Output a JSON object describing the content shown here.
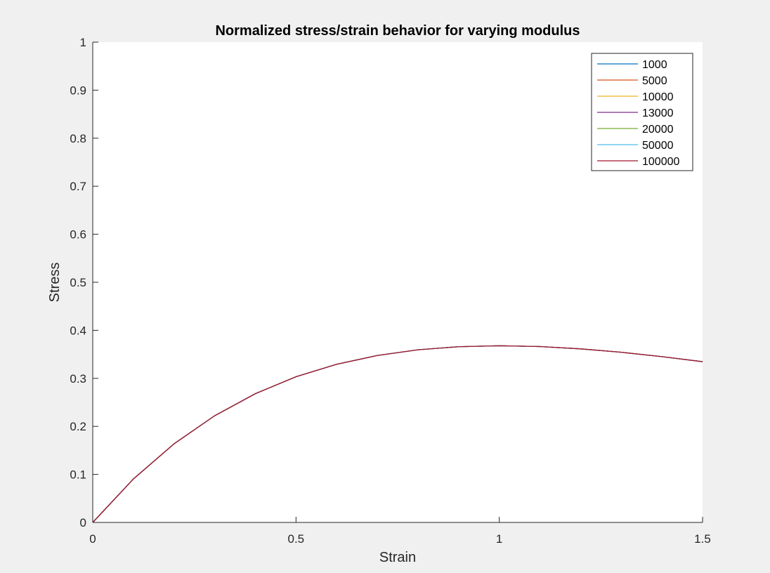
{
  "chart_data": {
    "type": "line",
    "title": "Normalized stress/strain behavior for varying modulus",
    "xlabel": "Strain",
    "ylabel": "Stress",
    "xlim": [
      0,
      1.5
    ],
    "ylim": [
      0,
      1
    ],
    "xticks": [
      "0",
      "0.5",
      "1",
      "1.5"
    ],
    "yticks": [
      "0",
      "0.1",
      "0.2",
      "0.3",
      "0.4",
      "0.5",
      "0.6",
      "0.7",
      "0.8",
      "0.9",
      "1"
    ],
    "grid": false,
    "legend_position": "top-right",
    "x": [
      0,
      0.1,
      0.2,
      0.3,
      0.4,
      0.5,
      0.6,
      0.7,
      0.8,
      0.9,
      1.0,
      1.1,
      1.2,
      1.3,
      1.4,
      1.5
    ],
    "series": [
      {
        "name": "1000",
        "color": "#0072BD",
        "values": [
          0,
          0.0905,
          0.1637,
          0.2222,
          0.2681,
          0.3033,
          0.3293,
          0.3476,
          0.3595,
          0.3659,
          0.3679,
          0.3662,
          0.3614,
          0.3543,
          0.3452,
          0.3347
        ]
      },
      {
        "name": "5000",
        "color": "#D95319",
        "values": [
          0,
          0.0905,
          0.1637,
          0.2222,
          0.2681,
          0.3033,
          0.3293,
          0.3476,
          0.3595,
          0.3659,
          0.3679,
          0.3662,
          0.3614,
          0.3543,
          0.3452,
          0.3347
        ]
      },
      {
        "name": "10000",
        "color": "#EDB120",
        "values": [
          0,
          0.0905,
          0.1637,
          0.2222,
          0.2681,
          0.3033,
          0.3293,
          0.3476,
          0.3595,
          0.3659,
          0.3679,
          0.3662,
          0.3614,
          0.3543,
          0.3452,
          0.3347
        ]
      },
      {
        "name": "13000",
        "color": "#7E2F8E",
        "values": [
          0,
          0.0905,
          0.1637,
          0.2222,
          0.2681,
          0.3033,
          0.3293,
          0.3476,
          0.3595,
          0.3659,
          0.3679,
          0.3662,
          0.3614,
          0.3543,
          0.3452,
          0.3347
        ]
      },
      {
        "name": "20000",
        "color": "#77AC30",
        "values": [
          0,
          0.0905,
          0.1637,
          0.2222,
          0.2681,
          0.3033,
          0.3293,
          0.3476,
          0.3595,
          0.3659,
          0.3679,
          0.3662,
          0.3614,
          0.3543,
          0.3452,
          0.3347
        ]
      },
      {
        "name": "50000",
        "color": "#4DBEEE",
        "values": [
          0,
          0.0905,
          0.1637,
          0.2222,
          0.2681,
          0.3033,
          0.3293,
          0.3476,
          0.3595,
          0.3659,
          0.3679,
          0.3662,
          0.3614,
          0.3543,
          0.3452,
          0.3347
        ]
      },
      {
        "name": "100000",
        "color": "#A2142F",
        "values": [
          0,
          0.0905,
          0.1637,
          0.2222,
          0.2681,
          0.3033,
          0.3293,
          0.3476,
          0.3595,
          0.3659,
          0.3679,
          0.3662,
          0.3614,
          0.3543,
          0.3452,
          0.3347
        ]
      }
    ]
  }
}
